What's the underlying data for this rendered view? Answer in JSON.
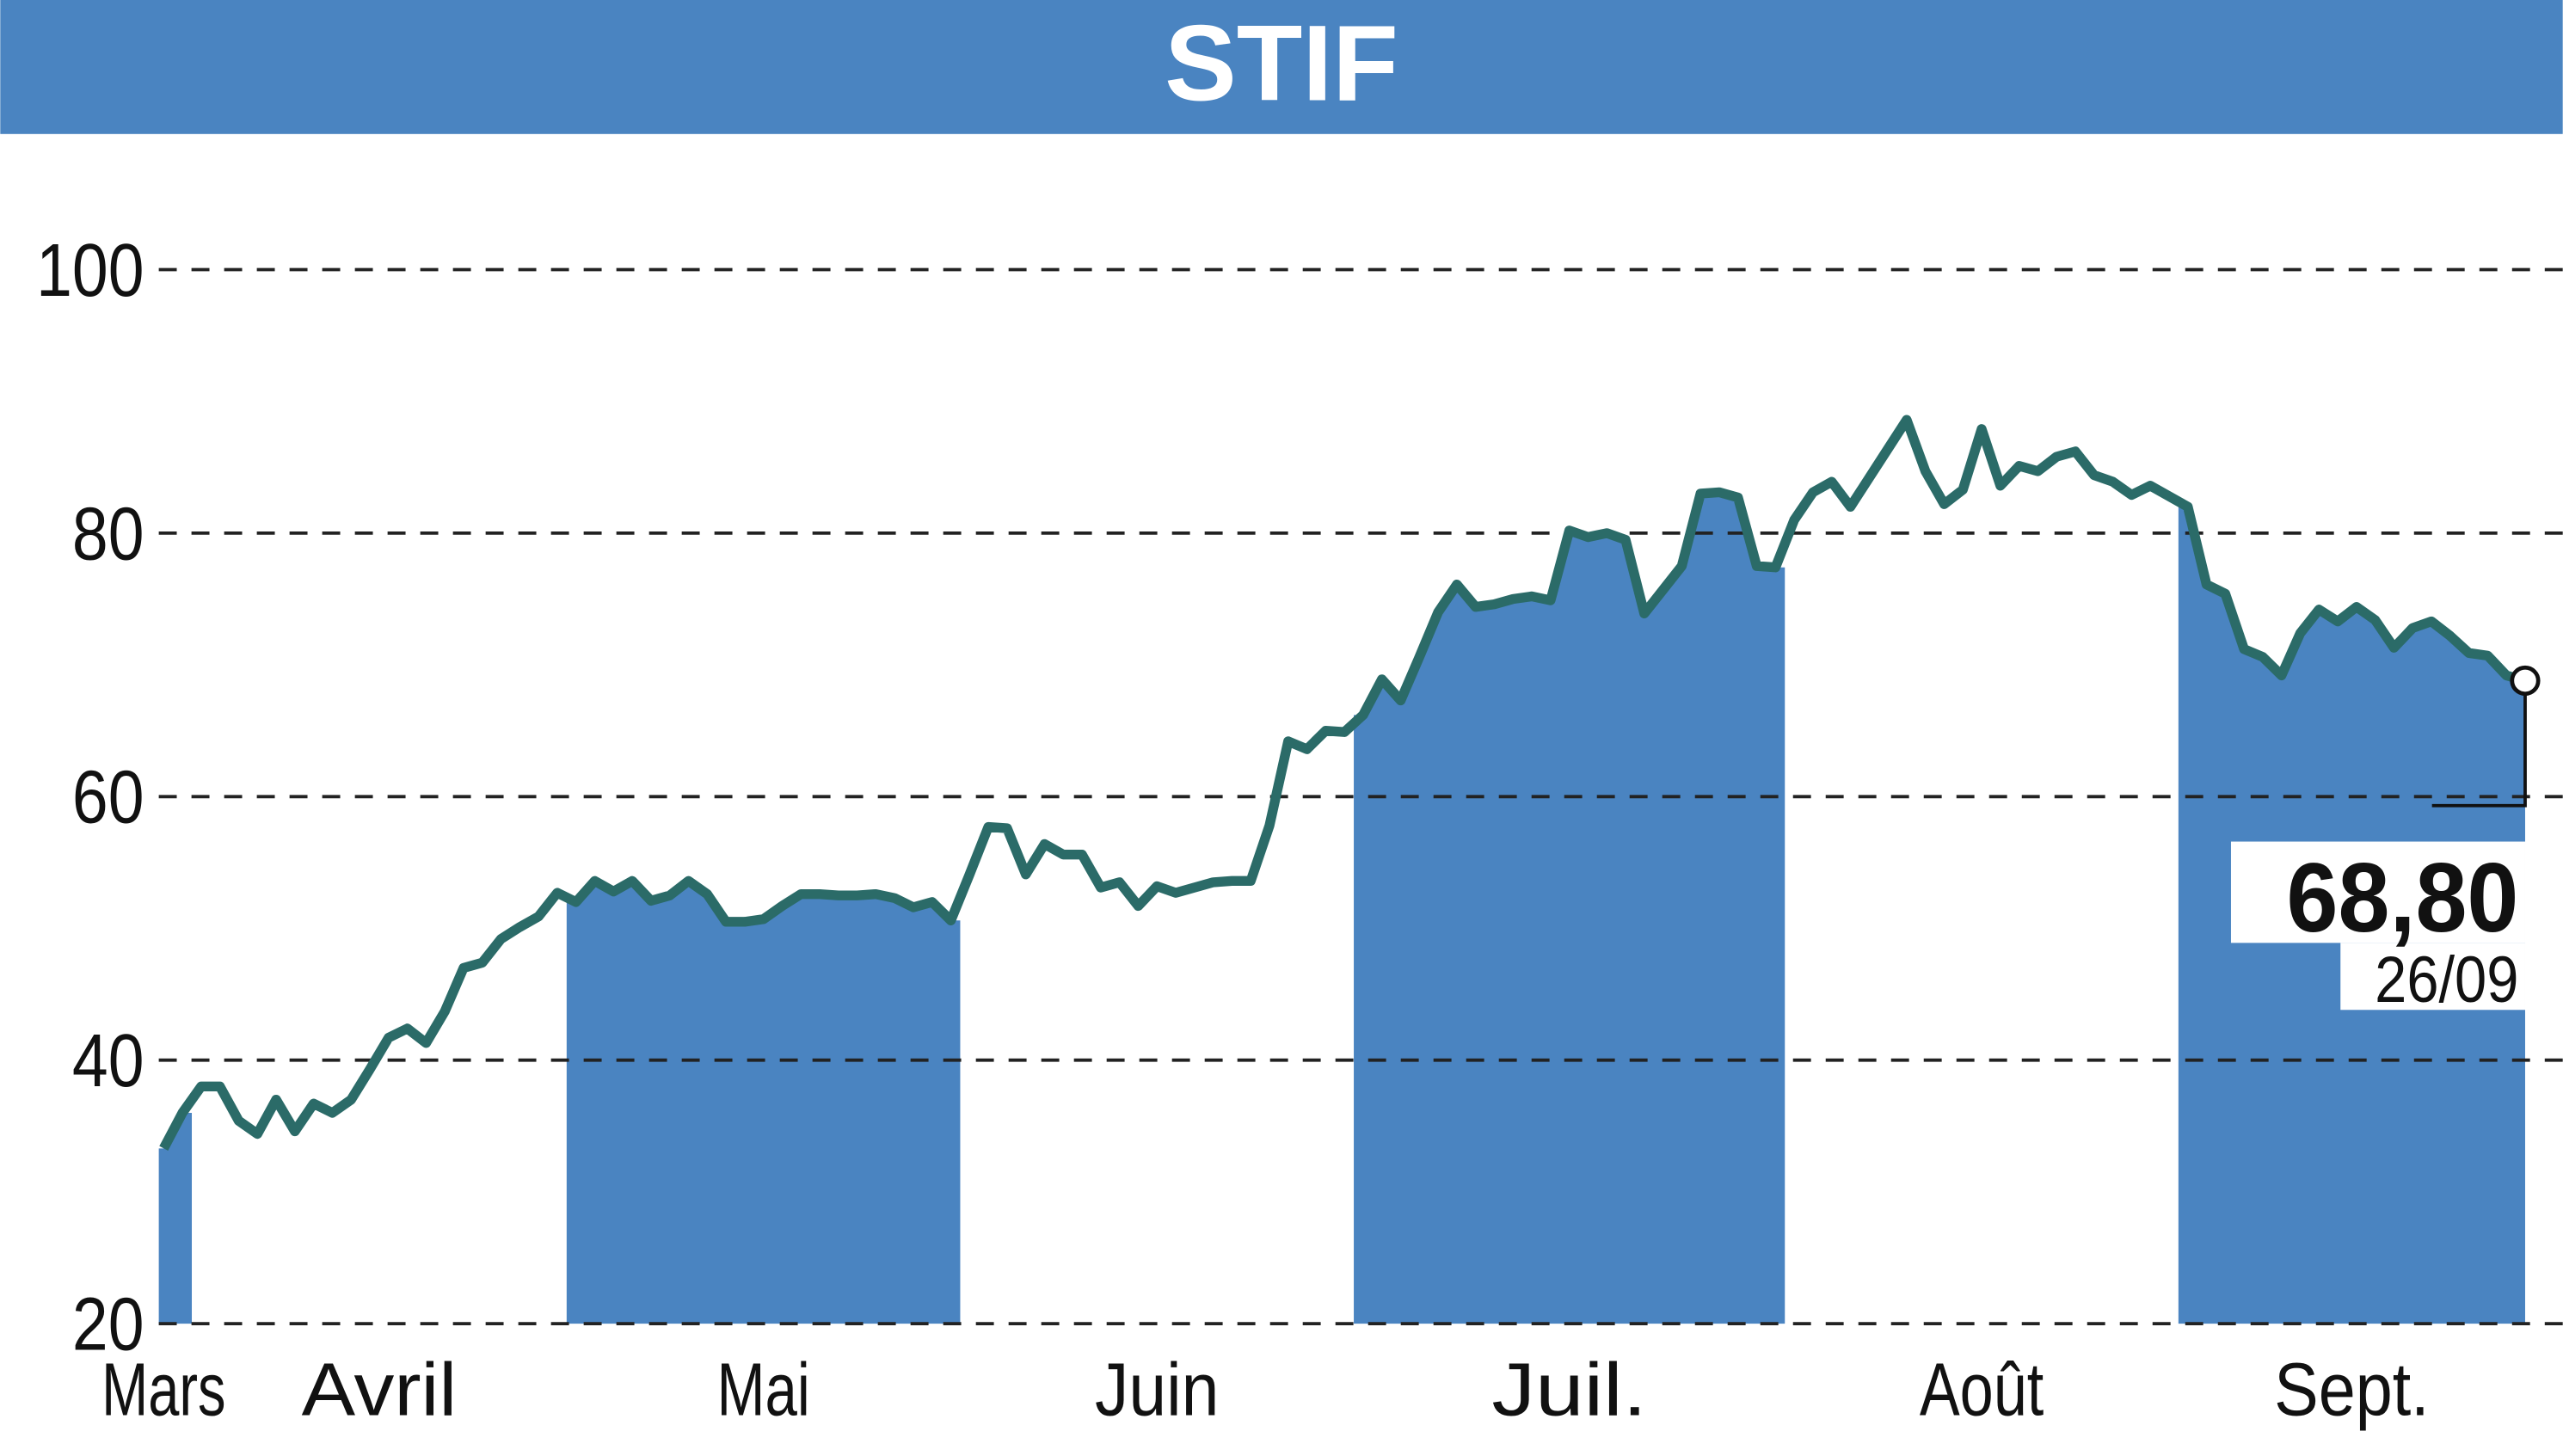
{
  "chart_data": {
    "type": "line",
    "title": "STIF",
    "ylim": [
      20,
      100
    ],
    "yticks": [
      20,
      40,
      60,
      80,
      100
    ],
    "grid": true,
    "line_color": "#2b6b68",
    "band_color": "#4a84c1",
    "series": [
      {
        "name": "Mars",
        "values": [
          33.3,
          36
        ]
      },
      {
        "name": "Avril",
        "values": [
          38,
          38,
          35.4,
          34.4,
          37,
          34.6,
          36.7,
          36,
          37,
          39.3,
          41.7,
          42.4,
          41.3,
          43.7,
          47,
          47.4,
          49.2,
          50.1,
          50.9,
          52.7
        ]
      },
      {
        "name": "Mai",
        "values": [
          52,
          53.6,
          52.8,
          53.6,
          52.1,
          52.5,
          53.6,
          52.6,
          50.5,
          50.5,
          50.7,
          51.7,
          52.6,
          52.6,
          52.5,
          52.5,
          52.6,
          52.3,
          51.6,
          52,
          50.6
        ]
      },
      {
        "name": "Juin",
        "values": [
          54.1,
          57.7,
          57.6,
          54.1,
          56.4,
          55.6,
          55.6,
          53.1,
          53.5,
          51.7,
          53.2,
          52.7,
          53.1,
          53.5,
          53.6,
          53.6,
          57.8,
          64.2,
          63.6,
          65,
          64.9
        ]
      },
      {
        "name": "Juil.",
        "values": [
          66.2,
          68.9,
          67.3,
          70.6,
          74,
          76.1,
          74.4,
          74.6,
          75,
          75.2,
          74.9,
          80.2,
          79.7,
          80,
          79.5,
          73.9,
          75.7,
          77.5,
          83,
          83.1,
          82.7,
          77.5,
          77.4
        ]
      },
      {
        "name": "Août",
        "values": [
          81,
          83.1,
          83.9,
          82,
          84.2,
          86.4,
          88.6,
          84.7,
          82.2,
          83.3,
          87.9,
          83.6,
          85.1,
          84.7,
          85.8,
          86.2,
          84.4,
          83.9,
          82.9,
          83.6,
          82.8
        ]
      },
      {
        "name": "Sept.",
        "values": [
          82,
          76.1,
          75.4,
          71.2,
          70.6,
          69.2,
          72.4,
          74.2,
          73.3,
          74.4,
          73.4,
          71.3,
          72.8,
          73.3,
          72.2,
          70.9,
          70.7,
          69.2,
          68.8
        ]
      }
    ],
    "last_value_label": "68,80",
    "last_date": "26/09"
  }
}
